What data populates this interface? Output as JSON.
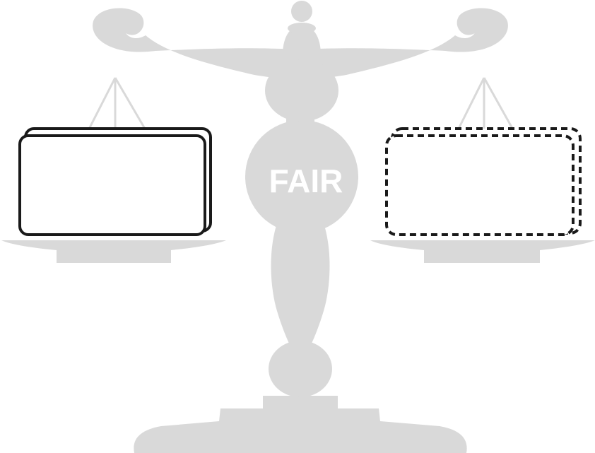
{
  "center_label": "FAIR",
  "colors": {
    "scale_fill": "#d9d9d9",
    "label_text": "#ffffff",
    "box_stroke": "#1a1a1a",
    "box_fill": "#ffffff",
    "background": "#ffffff"
  },
  "left_box": {
    "style": "solid"
  },
  "right_box": {
    "style": "dashed"
  },
  "icons": [
    "balance-scale-icon"
  ]
}
